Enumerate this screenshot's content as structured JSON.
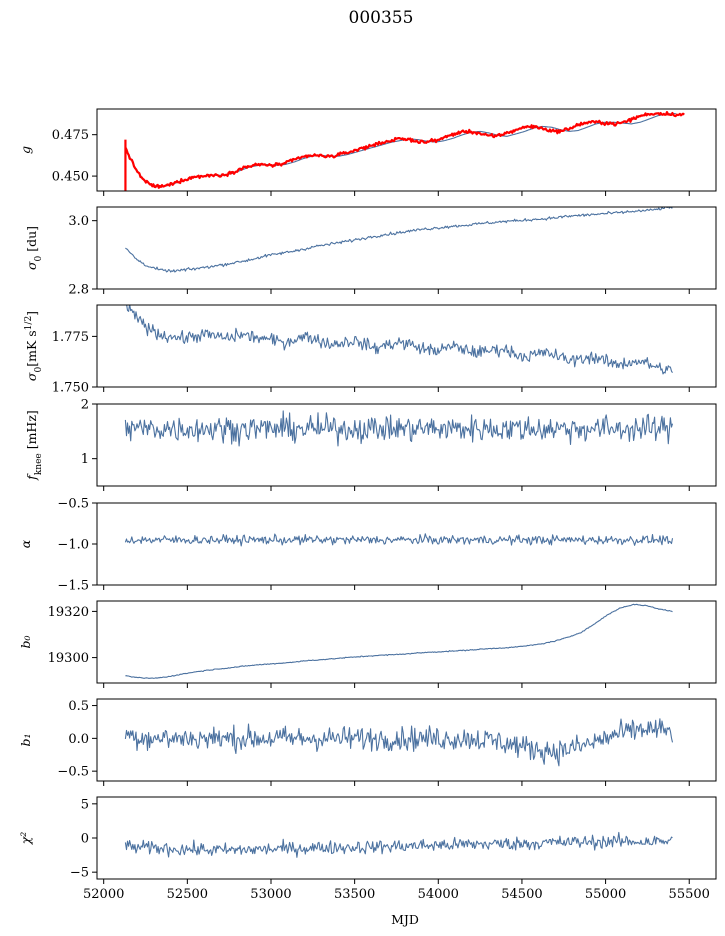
{
  "figure": {
    "title": "000355",
    "xlabel": "MJD"
  },
  "colors": {
    "series": "#4c72a0",
    "fit": "#ff0000"
  },
  "chart_data": [
    {
      "type": "line",
      "id": "g",
      "ylabel": "g",
      "xlim": [
        51960,
        55660
      ],
      "ylim": [
        0.441,
        0.4905
      ],
      "yticks": [
        0.45,
        0.475
      ],
      "ytick_labels": [
        "0.450",
        "0.475"
      ],
      "xticks": [
        52000,
        52500,
        53000,
        53500,
        54000,
        54500,
        55000,
        55500
      ],
      "xtick_labels": [],
      "series": [
        {
          "role": "data",
          "x_range": [
            52130,
            55420
          ],
          "values": [
            0.467,
            0.456,
            0.448,
            0.4445,
            0.4435,
            0.4445,
            0.4465,
            0.448,
            0.4495,
            0.45,
            0.4505,
            0.4505,
            0.4515,
            0.4535,
            0.4555,
            0.4565,
            0.457,
            0.4565,
            0.457,
            0.4585,
            0.4605,
            0.462,
            0.4625,
            0.462,
            0.462,
            0.463,
            0.4645,
            0.466,
            0.4675,
            0.469,
            0.4705,
            0.4715,
            0.4725,
            0.472,
            0.471,
            0.4705,
            0.4715,
            0.473,
            0.475,
            0.4765,
            0.477,
            0.476,
            0.4745,
            0.474,
            0.4755,
            0.477,
            0.479,
            0.48,
            0.4795,
            0.478,
            0.477,
            0.4775,
            0.4795,
            0.4815,
            0.4825,
            0.4825,
            0.482,
            0.4815,
            0.4825,
            0.4845,
            0.4865,
            0.4875,
            0.4878
          ]
        },
        {
          "role": "fit",
          "x_range": [
            52130,
            55470
          ],
          "noise": 0.0007,
          "values": [
            0.467,
            0.456,
            0.448,
            0.4445,
            0.4435,
            0.4445,
            0.4465,
            0.448,
            0.4495,
            0.45,
            0.4505,
            0.4505,
            0.4515,
            0.4535,
            0.4555,
            0.4565,
            0.457,
            0.4565,
            0.457,
            0.4585,
            0.4605,
            0.462,
            0.4625,
            0.462,
            0.462,
            0.463,
            0.4645,
            0.466,
            0.4675,
            0.469,
            0.4705,
            0.4715,
            0.4725,
            0.472,
            0.471,
            0.4705,
            0.4715,
            0.473,
            0.475,
            0.4765,
            0.477,
            0.476,
            0.4745,
            0.474,
            0.4755,
            0.477,
            0.479,
            0.48,
            0.4795,
            0.478,
            0.477,
            0.4775,
            0.4795,
            0.4815,
            0.4825,
            0.4825,
            0.482,
            0.4815,
            0.4825,
            0.4845,
            0.4865,
            0.4875,
            0.4878,
            0.4876,
            0.4872,
            0.487
          ]
        }
      ]
    },
    {
      "type": "line",
      "id": "sigma0_du",
      "ylabel": "σ₀ [du]",
      "xlim": [
        51960,
        55660
      ],
      "ylim": [
        2.8,
        3.04
      ],
      "yticks": [
        2.8,
        3.0
      ],
      "ytick_labels": [
        "2.8",
        "3.0"
      ],
      "xticks": [
        52000,
        52500,
        53000,
        53500,
        54000,
        54500,
        55000,
        55500
      ],
      "xtick_labels": [],
      "series": [
        {
          "x_range": [
            52130,
            55400
          ],
          "noise": 0.003,
          "values": [
            2.92,
            2.885,
            2.865,
            2.855,
            2.852,
            2.856,
            2.86,
            2.865,
            2.87,
            2.876,
            2.882,
            2.89,
            2.898,
            2.904,
            2.91,
            2.917,
            2.925,
            2.93,
            2.936,
            2.942,
            2.948,
            2.955,
            2.96,
            2.965,
            2.97,
            2.975,
            2.978,
            2.982,
            2.985,
            2.988,
            2.992,
            2.995,
            2.998,
            3.0,
            3.003,
            3.005,
            3.008,
            3.012,
            3.015,
            3.017,
            3.02,
            3.022,
            3.025,
            3.028,
            3.03,
            3.035,
            3.04
          ]
        }
      ]
    },
    {
      "type": "line",
      "id": "sigma0_mks",
      "ylabel": "σ₀[mK s^1/2]",
      "xlim": [
        51960,
        55660
      ],
      "ylim": [
        1.75,
        1.7905
      ],
      "yticks": [
        1.75,
        1.775
      ],
      "ytick_labels": [
        "1.750",
        "1.775"
      ],
      "xticks": [
        52000,
        52500,
        53000,
        53500,
        54000,
        54500,
        55000,
        55500
      ],
      "xtick_labels": [],
      "series": [
        {
          "x_range": [
            52130,
            55400
          ],
          "noise": 0.0022,
          "values": [
            1.79,
            1.784,
            1.779,
            1.776,
            1.775,
            1.774,
            1.775,
            1.776,
            1.775,
            1.774,
            1.776,
            1.775,
            1.774,
            1.773,
            1.772,
            1.774,
            1.775,
            1.773,
            1.771,
            1.772,
            1.773,
            1.771,
            1.769,
            1.771,
            1.772,
            1.771,
            1.769,
            1.768,
            1.769,
            1.77,
            1.768,
            1.767,
            1.768,
            1.769,
            1.767,
            1.765,
            1.766,
            1.767,
            1.765,
            1.763,
            1.764,
            1.765,
            1.763,
            1.761,
            1.762,
            1.763,
            1.761,
            1.759,
            1.758
          ]
        }
      ]
    },
    {
      "type": "line",
      "id": "fknee",
      "ylabel": "f_knee [mHz]",
      "xlim": [
        51960,
        55660
      ],
      "ylim": [
        0.5,
        2.0
      ],
      "yticks": [
        1,
        2
      ],
      "ytick_labels": [
        "1",
        "2"
      ],
      "xticks": [
        52000,
        52500,
        53000,
        53500,
        54000,
        54500,
        55000,
        55500
      ],
      "xtick_labels": [],
      "series": [
        {
          "x_range": [
            52130,
            55400
          ],
          "noise": 0.17,
          "values": [
            1.55,
            1.55
          ]
        }
      ]
    },
    {
      "type": "line",
      "id": "alpha",
      "ylabel": "α",
      "xlim": [
        51960,
        55660
      ],
      "ylim": [
        -1.5,
        -0.5
      ],
      "yticks": [
        -1.5,
        -1.0,
        -0.5
      ],
      "ytick_labels": [
        "−1.5",
        "−1.0",
        "−0.5"
      ],
      "xticks": [
        52000,
        52500,
        53000,
        53500,
        54000,
        54500,
        55000,
        55500
      ],
      "xtick_labels": [],
      "series": [
        {
          "x_range": [
            52130,
            55400
          ],
          "noise": 0.04,
          "values": [
            -0.95,
            -0.95
          ]
        }
      ]
    },
    {
      "type": "line",
      "id": "b0",
      "ylabel": "b₀",
      "xlim": [
        51960,
        55660
      ],
      "ylim": [
        19289,
        19324.5
      ],
      "yticks": [
        19300,
        19320
      ],
      "ytick_labels": [
        "19300",
        "19320"
      ],
      "xticks": [
        52000,
        52500,
        53000,
        53500,
        54000,
        54500,
        55000,
        55500
      ],
      "xtick_labels": [],
      "series": [
        {
          "x_range": [
            52130,
            55400
          ],
          "noise": 0.15,
          "values": [
            19292.0,
            19291.3,
            19291.0,
            19291.5,
            19292.5,
            19293.5,
            19294.3,
            19295.0,
            19295.6,
            19296.2,
            19296.8,
            19297.2,
            19297.6,
            19298.1,
            19298.7,
            19299.1,
            19299.5,
            19300.0,
            19300.4,
            19300.8,
            19301.1,
            19301.4,
            19301.8,
            19302.2,
            19302.5,
            19302.8,
            19303.1,
            19303.5,
            19303.9,
            19304.2,
            19304.6,
            19305.2,
            19306.0,
            19307.2,
            19308.8,
            19311.0,
            19314.5,
            19318.5,
            19321.5,
            19323.0,
            19322.5,
            19321.0,
            19320.0
          ]
        }
      ]
    },
    {
      "type": "line",
      "id": "b1",
      "ylabel": "b₁",
      "xlim": [
        51960,
        55660
      ],
      "ylim": [
        -0.65,
        0.6
      ],
      "yticks": [
        -0.5,
        0.0,
        0.5
      ],
      "ytick_labels": [
        "−0.5",
        "0.0",
        "0.5"
      ],
      "xticks": [
        52000,
        52500,
        53000,
        53500,
        54000,
        54500,
        55000,
        55500
      ],
      "xtick_labels": [],
      "series": [
        {
          "x_range": [
            52130,
            55400
          ],
          "noise": 0.13,
          "values": [
            0.05,
            0.0,
            0.0,
            0.0,
            0.0,
            0.0,
            0.0,
            0.0,
            0.0,
            0.0,
            0.0,
            0.0,
            0.0,
            -0.05,
            -0.15,
            -0.2,
            -0.1,
            0.05,
            0.15,
            0.1
          ]
        }
      ]
    },
    {
      "type": "line",
      "id": "chi2",
      "ylabel": "χ²",
      "xlim": [
        51960,
        55660
      ],
      "ylim": [
        -6,
        6
      ],
      "yticks": [
        -5,
        0,
        5
      ],
      "ytick_labels": [
        "−5",
        "0",
        "5"
      ],
      "xticks": [
        52000,
        52500,
        53000,
        53500,
        54000,
        54500,
        55000,
        55500
      ],
      "xtick_labels": [
        "52000",
        "52500",
        "53000",
        "53500",
        "54000",
        "54500",
        "55000",
        "55500"
      ],
      "series": [
        {
          "x_range": [
            52130,
            55400
          ],
          "noise": 0.7,
          "values": [
            -1.3,
            -1.6,
            -1.8,
            -1.6,
            -1.4,
            -1.3,
            -1.1,
            -0.9,
            -0.8,
            -0.6,
            -0.5,
            -0.5
          ]
        }
      ]
    }
  ]
}
